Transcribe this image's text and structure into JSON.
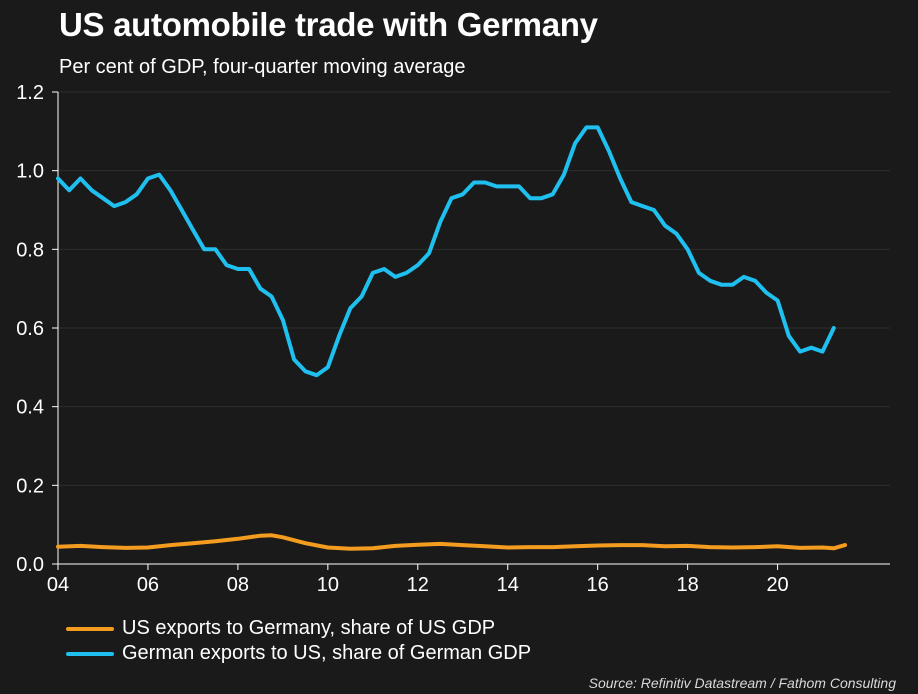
{
  "chart_data": {
    "type": "line",
    "title": "US automobile trade with Germany",
    "subtitle": "Per cent of GDP, four-quarter moving average",
    "source": "Source: Refinitiv Datastream / Fathom Consulting",
    "xlim": [
      2004,
      2022.5
    ],
    "ylim": [
      0,
      1.2
    ],
    "x_ticks": [
      2004,
      2006,
      2008,
      2010,
      2012,
      2014,
      2016,
      2018,
      2020
    ],
    "x_tick_labels": [
      "04",
      "06",
      "08",
      "10",
      "12",
      "14",
      "16",
      "18",
      "20"
    ],
    "y_ticks": [
      0,
      0.2,
      0.4,
      0.6,
      0.8,
      1.0,
      1.2
    ],
    "y_tick_labels": [
      "0.0",
      "0.2",
      "0.4",
      "0.6",
      "0.8",
      "1.0",
      "1.2"
    ],
    "grid": true,
    "legend_position": "bottom-left",
    "series": [
      {
        "name": "US exports to Germany, share of US GDP",
        "color": "#f39c1f",
        "points": [
          [
            2004.0,
            0.044
          ],
          [
            2004.5,
            0.046
          ],
          [
            2005.0,
            0.043
          ],
          [
            2005.5,
            0.041
          ],
          [
            2006.0,
            0.042
          ],
          [
            2006.5,
            0.048
          ],
          [
            2007.0,
            0.053
          ],
          [
            2007.5,
            0.058
          ],
          [
            2008.0,
            0.064
          ],
          [
            2008.5,
            0.072
          ],
          [
            2008.75,
            0.073
          ],
          [
            2009.0,
            0.068
          ],
          [
            2009.5,
            0.053
          ],
          [
            2010.0,
            0.042
          ],
          [
            2010.5,
            0.039
          ],
          [
            2011.0,
            0.04
          ],
          [
            2011.5,
            0.046
          ],
          [
            2012.0,
            0.049
          ],
          [
            2012.5,
            0.051
          ],
          [
            2013.0,
            0.048
          ],
          [
            2013.5,
            0.045
          ],
          [
            2014.0,
            0.042
          ],
          [
            2014.5,
            0.043
          ],
          [
            2015.0,
            0.043
          ],
          [
            2015.5,
            0.045
          ],
          [
            2016.0,
            0.047
          ],
          [
            2016.5,
            0.048
          ],
          [
            2017.0,
            0.048
          ],
          [
            2017.5,
            0.045
          ],
          [
            2018.0,
            0.046
          ],
          [
            2018.5,
            0.043
          ],
          [
            2019.0,
            0.042
          ],
          [
            2019.5,
            0.043
          ],
          [
            2020.0,
            0.045
          ],
          [
            2020.5,
            0.041
          ],
          [
            2021.0,
            0.042
          ],
          [
            2021.25,
            0.04
          ],
          [
            2021.5,
            0.048
          ]
        ]
      },
      {
        "name": "German exports to US, share of German GDP",
        "color": "#1fc0ef",
        "points": [
          [
            2004.0,
            0.98
          ],
          [
            2004.25,
            0.95
          ],
          [
            2004.5,
            0.98
          ],
          [
            2004.75,
            0.95
          ],
          [
            2005.0,
            0.93
          ],
          [
            2005.25,
            0.91
          ],
          [
            2005.5,
            0.92
          ],
          [
            2005.75,
            0.94
          ],
          [
            2006.0,
            0.98
          ],
          [
            2006.25,
            0.99
          ],
          [
            2006.5,
            0.95
          ],
          [
            2006.75,
            0.9
          ],
          [
            2007.0,
            0.85
          ],
          [
            2007.25,
            0.8
          ],
          [
            2007.5,
            0.8
          ],
          [
            2007.75,
            0.76
          ],
          [
            2008.0,
            0.75
          ],
          [
            2008.25,
            0.75
          ],
          [
            2008.5,
            0.7
          ],
          [
            2008.75,
            0.68
          ],
          [
            2009.0,
            0.62
          ],
          [
            2009.25,
            0.52
          ],
          [
            2009.5,
            0.49
          ],
          [
            2009.75,
            0.48
          ],
          [
            2010.0,
            0.5
          ],
          [
            2010.25,
            0.58
          ],
          [
            2010.5,
            0.65
          ],
          [
            2010.75,
            0.68
          ],
          [
            2011.0,
            0.74
          ],
          [
            2011.25,
            0.75
          ],
          [
            2011.5,
            0.73
          ],
          [
            2011.75,
            0.74
          ],
          [
            2012.0,
            0.76
          ],
          [
            2012.25,
            0.79
          ],
          [
            2012.5,
            0.87
          ],
          [
            2012.75,
            0.93
          ],
          [
            2013.0,
            0.94
          ],
          [
            2013.25,
            0.97
          ],
          [
            2013.5,
            0.97
          ],
          [
            2013.75,
            0.96
          ],
          [
            2014.0,
            0.96
          ],
          [
            2014.25,
            0.96
          ],
          [
            2014.5,
            0.93
          ],
          [
            2014.75,
            0.93
          ],
          [
            2015.0,
            0.94
          ],
          [
            2015.25,
            0.99
          ],
          [
            2015.5,
            1.07
          ],
          [
            2015.75,
            1.11
          ],
          [
            2016.0,
            1.11
          ],
          [
            2016.25,
            1.05
          ],
          [
            2016.5,
            0.98
          ],
          [
            2016.75,
            0.92
          ],
          [
            2017.0,
            0.91
          ],
          [
            2017.25,
            0.9
          ],
          [
            2017.5,
            0.86
          ],
          [
            2017.75,
            0.84
          ],
          [
            2018.0,
            0.8
          ],
          [
            2018.25,
            0.74
          ],
          [
            2018.5,
            0.72
          ],
          [
            2018.75,
            0.71
          ],
          [
            2019.0,
            0.71
          ],
          [
            2019.25,
            0.73
          ],
          [
            2019.5,
            0.72
          ],
          [
            2019.75,
            0.69
          ],
          [
            2020.0,
            0.67
          ],
          [
            2020.25,
            0.58
          ],
          [
            2020.5,
            0.54
          ],
          [
            2020.75,
            0.55
          ],
          [
            2021.0,
            0.54
          ],
          [
            2021.25,
            0.6
          ]
        ]
      }
    ]
  }
}
